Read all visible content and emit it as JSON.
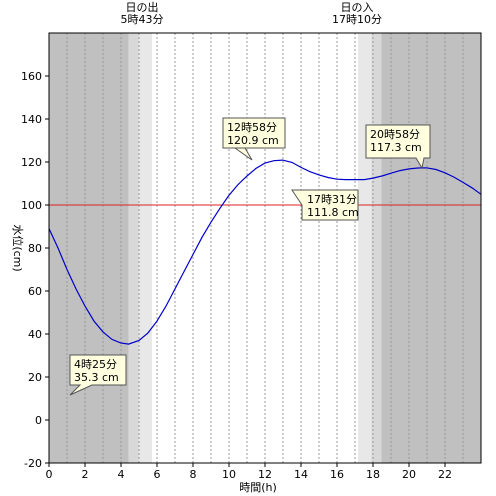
{
  "chart_data": {
    "type": "line",
    "xlabel": "時間(h)",
    "ylabel": "水位(cm)",
    "xlim": [
      0,
      24
    ],
    "ylim": [
      -20,
      180
    ],
    "xticks": [
      0,
      2,
      4,
      6,
      8,
      10,
      12,
      14,
      16,
      18,
      20,
      22
    ],
    "yticks": [
      -20,
      0,
      20,
      40,
      60,
      80,
      100,
      120,
      140,
      160
    ],
    "grid": "vertical dotted every hour",
    "reference_line": {
      "y": 100,
      "color": "#dd2222"
    },
    "series": [
      {
        "color": "#0000cc",
        "x": [
          0,
          0.5,
          1,
          1.5,
          2,
          2.5,
          3,
          3.5,
          4,
          4.42,
          5,
          5.5,
          6,
          6.5,
          7,
          7.5,
          8,
          8.5,
          9,
          9.5,
          10,
          10.5,
          11,
          11.5,
          12,
          12.5,
          12.97,
          13.5,
          14,
          14.5,
          15,
          15.5,
          16,
          16.5,
          17,
          17.52,
          18,
          18.5,
          19,
          19.5,
          20,
          20.5,
          20.97,
          21.5,
          22,
          22.5,
          23,
          23.5,
          24
        ],
        "y": [
          89,
          80,
          70,
          61,
          53,
          46,
          41,
          37.5,
          35.8,
          35.3,
          37,
          40.5,
          46,
          53,
          61,
          69,
          77,
          85,
          92,
          98.5,
          104.5,
          109.5,
          113.5,
          117,
          119.5,
          120.6,
          120.9,
          119.8,
          117.5,
          115.5,
          114,
          112.8,
          112,
          111.8,
          111.8,
          111.8,
          112.5,
          113.5,
          114.8,
          116,
          116.8,
          117.2,
          117.3,
          116.5,
          115,
          113,
          110.5,
          108,
          105
        ]
      }
    ],
    "annotations": [
      {
        "time": "4時25分",
        "value": "35.3 cm"
      },
      {
        "time": "12時58分",
        "value": "120.9 cm"
      },
      {
        "time": "17時31分",
        "value": "111.8 cm"
      },
      {
        "time": "20時58分",
        "value": "117.3 cm"
      }
    ],
    "sunrise": {
      "label": "日の出",
      "time": "5時43分",
      "hour": 5.72
    },
    "sunset": {
      "label": "日の入",
      "time": "17時10分",
      "hour": 17.17
    },
    "colors": {
      "night": "#c0c0c0",
      "twilight1": "#d8d8d8",
      "twilight2": "#e8e8e8",
      "day": "#ffffff",
      "annotation_bg": "#ffffe0"
    }
  }
}
